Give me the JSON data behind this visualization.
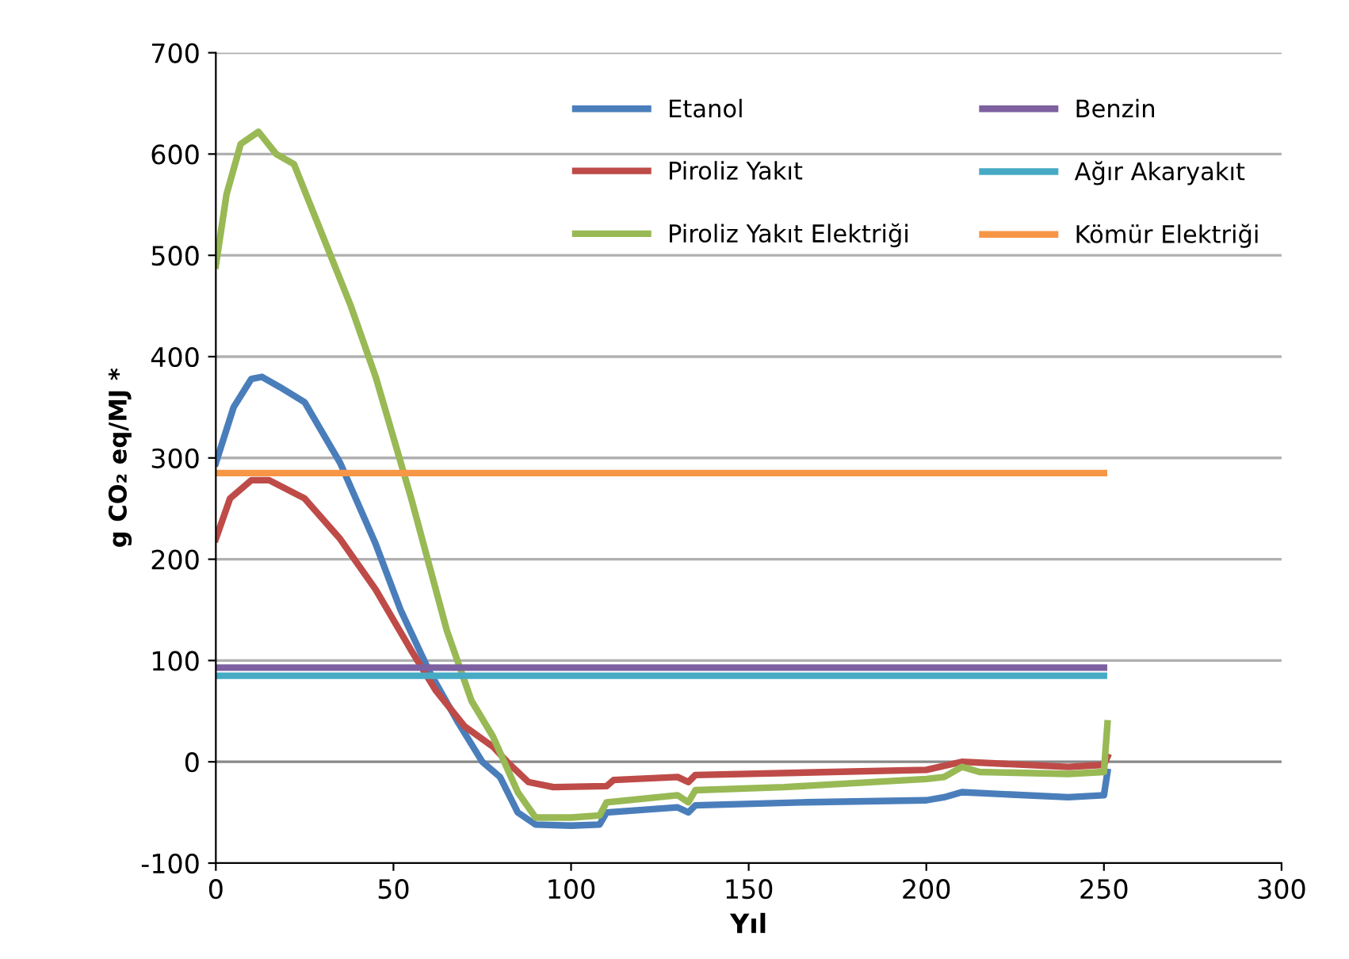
{
  "chart_data": {
    "type": "line",
    "xlabel": "Yıl",
    "ylabel": "g CO₂ eq/MJ *",
    "xlim": [
      0,
      300
    ],
    "ylim": [
      -100,
      700
    ],
    "xticks": [
      0,
      50,
      100,
      150,
      200,
      250,
      300
    ],
    "yticks": [
      -100,
      0,
      100,
      200,
      300,
      400,
      500,
      600,
      700
    ],
    "grid": "y",
    "legend": "top right",
    "marker": "none",
    "line_style": "solid",
    "series": [
      {
        "name": "Etanol",
        "color": "#4a7ebb",
        "x": [
          0,
          5,
          10,
          13,
          18,
          25,
          35,
          45,
          52,
          60,
          68,
          75,
          80,
          85,
          90,
          100,
          108,
          110,
          130,
          133,
          135,
          165,
          200,
          205,
          210,
          240,
          250,
          251
        ],
        "values": [
          295,
          350,
          378,
          380,
          370,
          355,
          295,
          215,
          150,
          90,
          40,
          0,
          -15,
          -50,
          -62,
          -63,
          -62,
          -50,
          -45,
          -50,
          -43,
          -40,
          -38,
          -35,
          -30,
          -35,
          -33,
          -10
        ]
      },
      {
        "name": "Piroliz Yakıt",
        "color": "#be4b48",
        "x": [
          0,
          4,
          10,
          15,
          25,
          35,
          45,
          55,
          62,
          70,
          78,
          82,
          88,
          95,
          110,
          112,
          130,
          133,
          135,
          200,
          210,
          240,
          250,
          251
        ],
        "values": [
          220,
          260,
          278,
          278,
          260,
          220,
          170,
          110,
          70,
          35,
          15,
          0,
          -20,
          -25,
          -24,
          -18,
          -15,
          -20,
          -13,
          -8,
          0,
          -5,
          -3,
          5
        ]
      },
      {
        "name": "Piroliz Yakıt Elektriği",
        "color": "#98b954",
        "x": [
          0,
          3,
          7,
          12,
          17,
          22,
          30,
          38,
          45,
          55,
          65,
          72,
          78,
          85,
          90,
          100,
          108,
          110,
          130,
          133,
          135,
          160,
          200,
          205,
          210,
          215,
          240,
          250,
          251
        ],
        "values": [
          490,
          560,
          610,
          622,
          600,
          590,
          520,
          450,
          380,
          260,
          130,
          60,
          25,
          -30,
          -55,
          -55,
          -53,
          -40,
          -33,
          -40,
          -28,
          -25,
          -17,
          -15,
          -5,
          -10,
          -12,
          -10,
          38
        ]
      },
      {
        "name": "Benzin",
        "color": "#7d60a0",
        "x": [
          0,
          250
        ],
        "values": [
          93,
          93
        ]
      },
      {
        "name": "Ağır Akaryakıt",
        "color": "#46aac5",
        "x": [
          0,
          250
        ],
        "values": [
          85,
          85
        ]
      },
      {
        "name": "Kömür Elektriği",
        "color": "#f79646",
        "x": [
          0,
          250
        ],
        "values": [
          285,
          285
        ]
      }
    ]
  }
}
